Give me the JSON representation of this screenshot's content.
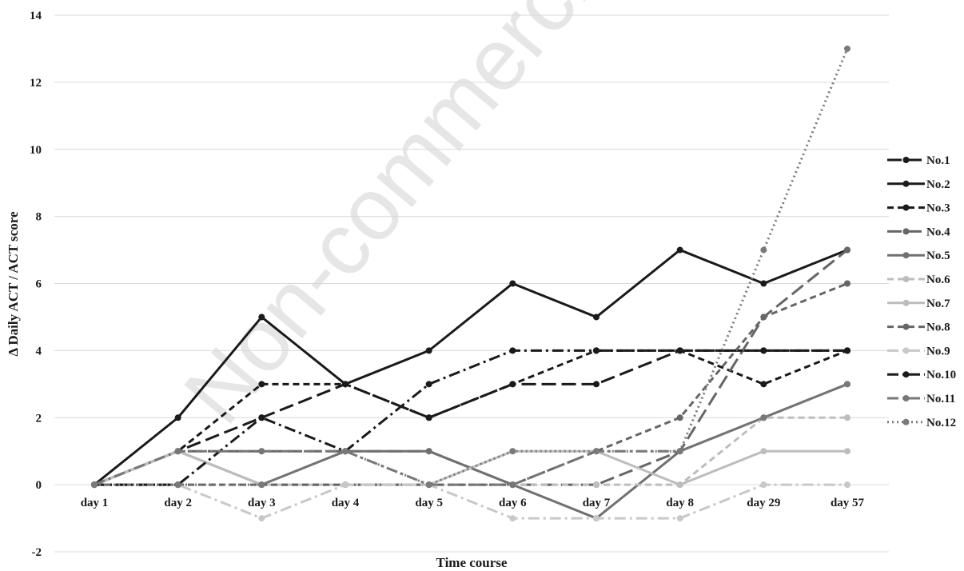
{
  "watermark": "Non-commercial",
  "chart_data": {
    "type": "line",
    "title": "",
    "xlabel": "Time course",
    "ylabel": "Δ Daily ACT / ACT score",
    "categories": [
      "day 1",
      "day 2",
      "day 3",
      "day 4",
      "day 5",
      "day 6",
      "day 7",
      "day 8",
      "day 29",
      "day 57"
    ],
    "ylim": [
      -2,
      14
    ],
    "yticks": [
      -2,
      0,
      2,
      4,
      6,
      8,
      10,
      12,
      14
    ],
    "grid": true,
    "legend_position": "right",
    "series": [
      {
        "name": "No.1",
        "color": "#1a1a1a",
        "dash": "long-dash",
        "values": [
          0,
          1,
          2,
          3,
          2,
          3,
          3,
          4,
          4,
          4
        ]
      },
      {
        "name": "No.2",
        "color": "#1a1a1a",
        "dash": "solid",
        "values": [
          0,
          2,
          5,
          3,
          4,
          6,
          5,
          7,
          6,
          7
        ]
      },
      {
        "name": "No.3",
        "color": "#1a1a1a",
        "dash": "dash",
        "values": [
          0,
          1,
          3,
          3,
          2,
          3,
          4,
          4,
          3,
          4
        ]
      },
      {
        "name": "No.4",
        "color": "#666666",
        "dash": "long-dash",
        "values": [
          0,
          1,
          1,
          1,
          1,
          0,
          0,
          1,
          5,
          7
        ]
      },
      {
        "name": "No.5",
        "color": "#707070",
        "dash": "solid",
        "values": [
          0,
          1,
          0,
          1,
          1,
          0,
          -1,
          1,
          2,
          3
        ]
      },
      {
        "name": "No.6",
        "color": "#bdbdbd",
        "dash": "dash",
        "values": [
          0,
          0,
          0,
          0,
          0,
          0,
          0,
          0,
          2,
          2
        ]
      },
      {
        "name": "No.7",
        "color": "#bdbdbd",
        "dash": "solid",
        "values": [
          0,
          1,
          0,
          0,
          0,
          1,
          1,
          0,
          1,
          1
        ]
      },
      {
        "name": "No.8",
        "color": "#666666",
        "dash": "dash",
        "values": [
          0,
          0,
          0,
          0,
          0,
          0,
          1,
          2,
          5,
          6
        ]
      },
      {
        "name": "No.9",
        "color": "#c8c8c8",
        "dash": "dash-dot",
        "values": [
          0,
          0,
          -1,
          0,
          0,
          -1,
          -1,
          -1,
          0,
          0
        ]
      },
      {
        "name": "No.10",
        "color": "#1a1a1a",
        "dash": "dash-dot",
        "values": [
          0,
          0,
          2,
          1,
          3,
          4,
          4,
          4,
          4,
          4
        ]
      },
      {
        "name": "No.11",
        "color": "#777777",
        "dash": "dash-dot",
        "values": [
          0,
          1,
          1,
          1,
          0,
          0,
          1,
          1,
          2,
          3
        ]
      },
      {
        "name": "No.12",
        "color": "#7a7a7a",
        "dash": "dot",
        "values": [
          0,
          0,
          0,
          1,
          0,
          1,
          1,
          1,
          7,
          13
        ]
      }
    ]
  }
}
